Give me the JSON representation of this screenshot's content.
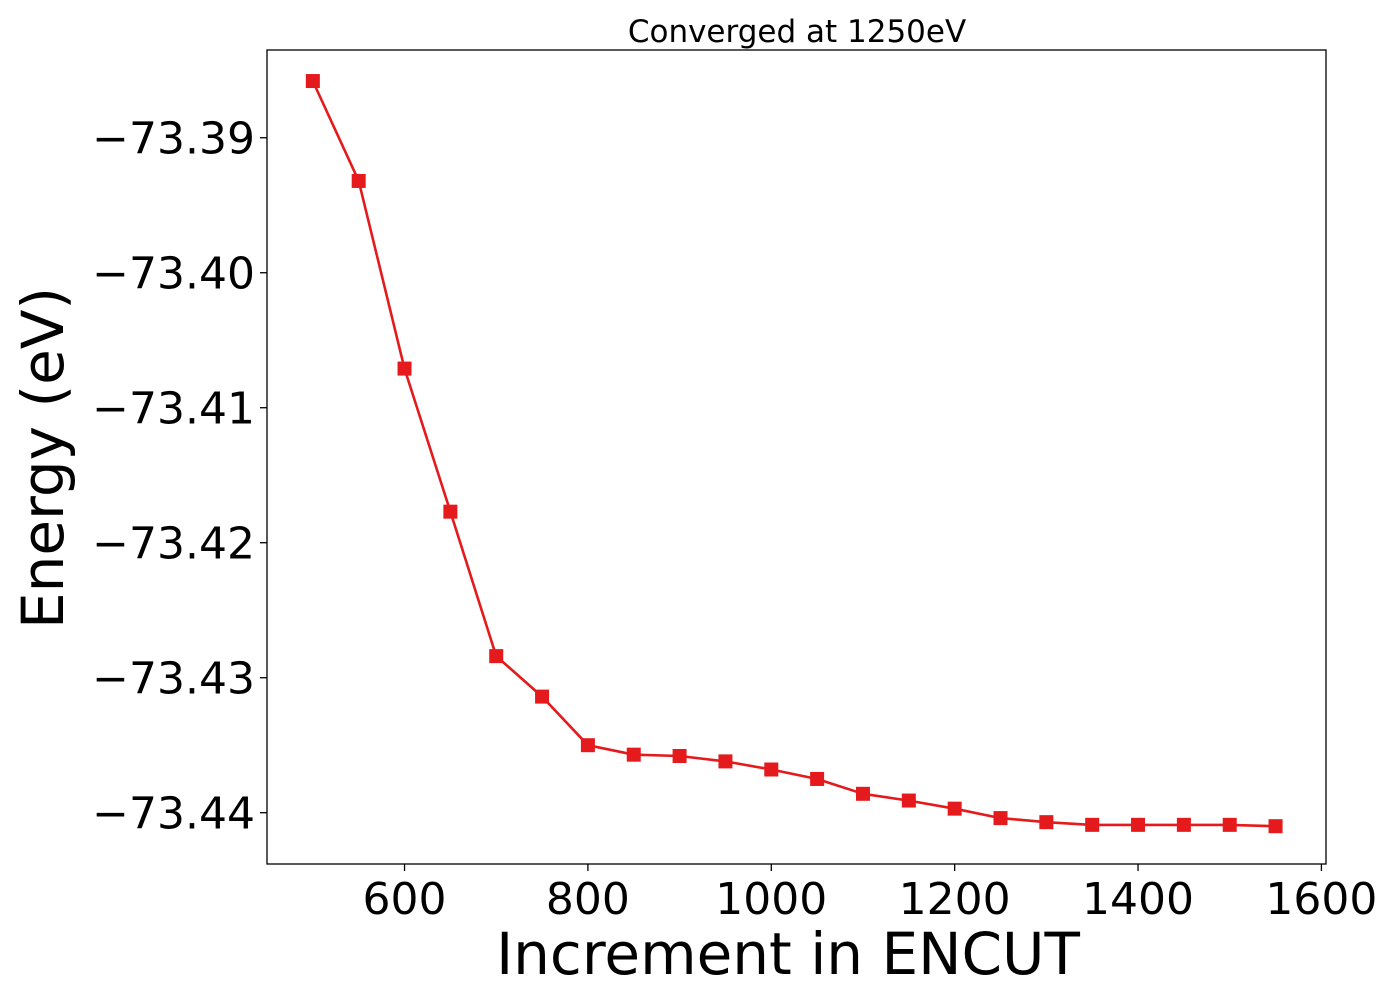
{
  "chart_data": {
    "type": "line",
    "title": "Converged at 1250eV",
    "xlabel": "Increment in ENCUT",
    "ylabel": "Energy (eV)",
    "xlim": [
      450,
      1605
    ],
    "ylim": [
      -73.4438,
      -73.3835
    ],
    "xticks": [
      600,
      800,
      1000,
      1200,
      1400,
      1600
    ],
    "xtick_labels": [
      "600",
      "800",
      "1000",
      "1200",
      "1400",
      "1600"
    ],
    "yticks": [
      -73.39,
      -73.4,
      -73.41,
      -73.42,
      -73.43,
      -73.44
    ],
    "ytick_labels": [
      "−73.39",
      "−73.40",
      "−73.41",
      "−73.42",
      "−73.43",
      "−73.44"
    ],
    "grid": false,
    "series": [
      {
        "color": "#e41a1c",
        "marker": "square",
        "x": [
          500,
          550,
          600,
          650,
          700,
          750,
          800,
          850,
          900,
          950,
          1000,
          1050,
          1100,
          1150,
          1200,
          1250,
          1300,
          1350,
          1400,
          1450,
          1500,
          1550
        ],
        "y": [
          -73.3858,
          -73.3932,
          -73.4071,
          -73.4177,
          -73.4284,
          -73.4314,
          -73.435,
          -73.4357,
          -73.4358,
          -73.4362,
          -73.4368,
          -73.4375,
          -73.4386,
          -73.4391,
          -73.4397,
          -73.4404,
          -73.4407,
          -73.4409,
          -73.4409,
          -73.4409,
          -73.4409,
          -73.441
        ]
      }
    ]
  }
}
